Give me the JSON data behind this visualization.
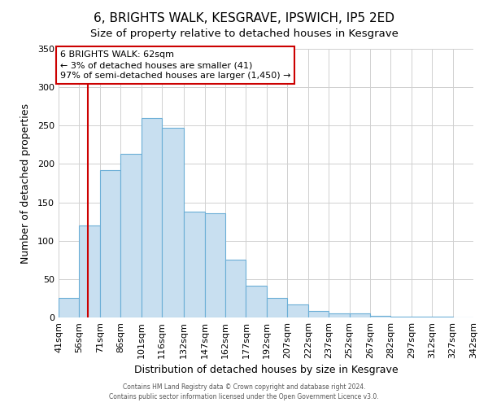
{
  "title": "6, BRIGHTS WALK, KESGRAVE, IPSWICH, IP5 2ED",
  "subtitle": "Size of property relative to detached houses in Kesgrave",
  "xlabel": "Distribution of detached houses by size in Kesgrave",
  "ylabel": "Number of detached properties",
  "bins": [
    41,
    56,
    71,
    86,
    101,
    116,
    132,
    147,
    162,
    177,
    192,
    207,
    222,
    237,
    252,
    267,
    282,
    297,
    312,
    327,
    342
  ],
  "counts": [
    25,
    120,
    192,
    213,
    260,
    247,
    138,
    136,
    75,
    41,
    25,
    17,
    8,
    5,
    5,
    2,
    1,
    1,
    1,
    0
  ],
  "bar_color": "#c8dff0",
  "bar_edge_color": "#6baed6",
  "vline_x": 62,
  "vline_color": "#cc0000",
  "ylim": [
    0,
    350
  ],
  "yticks": [
    0,
    50,
    100,
    150,
    200,
    250,
    300,
    350
  ],
  "annotation_text": "6 BRIGHTS WALK: 62sqm\n← 3% of detached houses are smaller (41)\n97% of semi-detached houses are larger (1,450) →",
  "annotation_box_color": "#ffffff",
  "annotation_box_edge_color": "#cc0000",
  "footer_line1": "Contains HM Land Registry data © Crown copyright and database right 2024.",
  "footer_line2": "Contains public sector information licensed under the Open Government Licence v3.0.",
  "tick_labels": [
    "41sqm",
    "56sqm",
    "71sqm",
    "86sqm",
    "101sqm",
    "116sqm",
    "132sqm",
    "147sqm",
    "162sqm",
    "177sqm",
    "192sqm",
    "207sqm",
    "222sqm",
    "237sqm",
    "252sqm",
    "267sqm",
    "282sqm",
    "297sqm",
    "312sqm",
    "327sqm",
    "342sqm"
  ],
  "title_fontsize": 11,
  "subtitle_fontsize": 9.5
}
